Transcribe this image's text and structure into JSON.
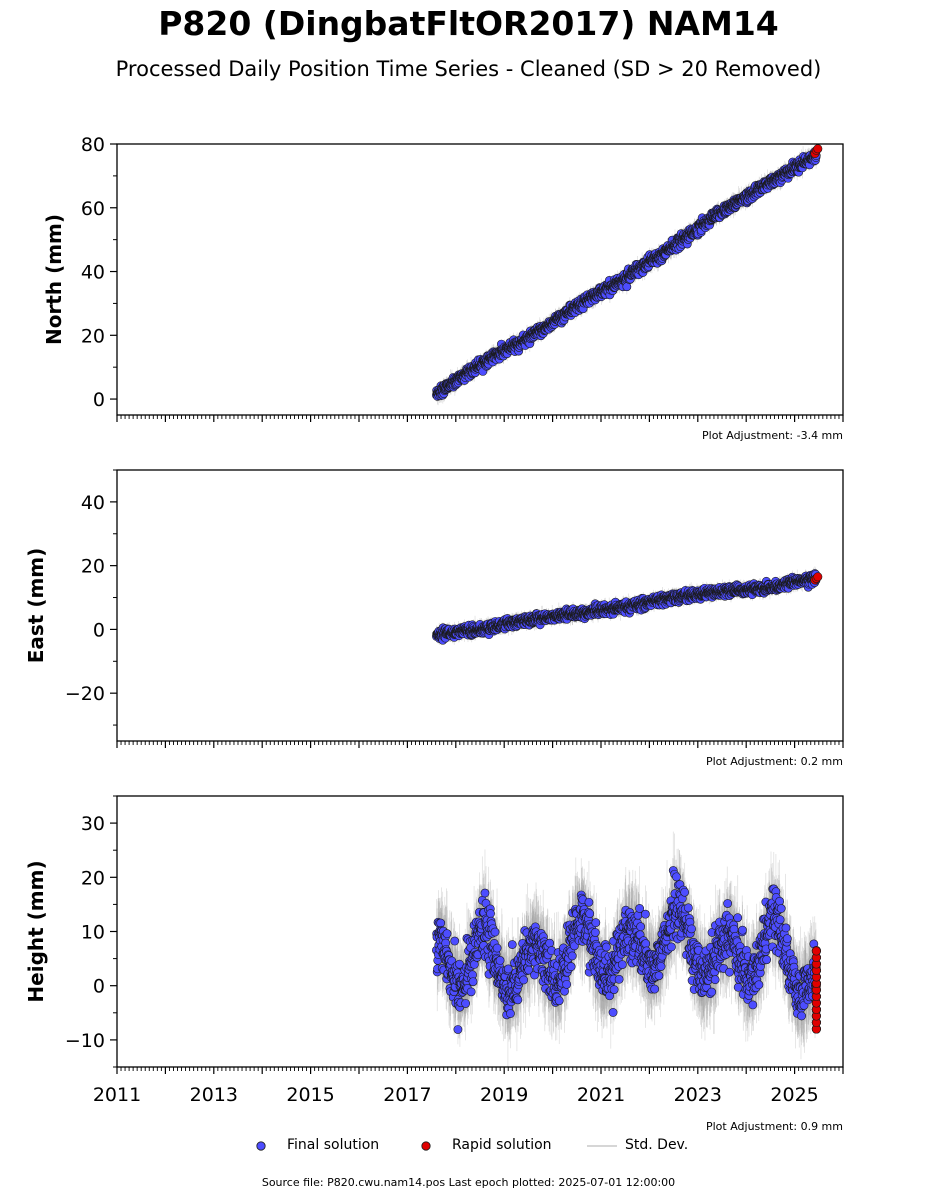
{
  "title": "P820 (DingbatFltOR2017) NAM14",
  "subtitle": "Processed Daily Position Time Series - Cleaned (SD > 20 Removed)",
  "colors": {
    "final": "#4d4dff",
    "rapid": "#e00000",
    "stddev": "#9a9a9a",
    "marker_edge": "#1a1a1a"
  },
  "chart_data": [
    {
      "type": "scatter",
      "ylabel": "North (mm)",
      "ylim": [
        -5,
        80
      ],
      "yticks": [
        0,
        20,
        40,
        60,
        80
      ],
      "ytick_labels": [
        "0",
        "20",
        "40",
        "60",
        "80"
      ],
      "xlim": [
        2011,
        2026
      ],
      "grid": false,
      "adjustment": "Plot Adjustment: -3.4 mm",
      "trend": {
        "start": [
          2017.6,
          1.5
        ],
        "end": [
          2025.45,
          76.5
        ],
        "noise": 1.5
      },
      "series": [
        {
          "name": "Final solution",
          "x": [
            2017.6,
            2018.5,
            2019.5,
            2020.5,
            2021.5,
            2022.5,
            2023.5,
            2024.5,
            2025.4
          ],
          "y": [
            1.5,
            11,
            19,
            29,
            38,
            48,
            59,
            68,
            76
          ]
        },
        {
          "name": "Rapid solution",
          "x": [
            2025.42,
            2025.45,
            2025.48
          ],
          "y": [
            77,
            78,
            78.5
          ]
        }
      ]
    },
    {
      "type": "scatter",
      "ylabel": "East (mm)",
      "ylim": [
        -35,
        50
      ],
      "yticks": [
        -20,
        0,
        20,
        40
      ],
      "ytick_labels": [
        "−20",
        "0",
        "20",
        "40"
      ],
      "xlim": [
        2011,
        2026
      ],
      "grid": false,
      "adjustment": "Plot Adjustment: 0.2 mm",
      "trend": {
        "start": [
          2017.6,
          -1.5
        ],
        "end": [
          2025.45,
          16
        ],
        "noise": 1.3
      },
      "series": [
        {
          "name": "Final solution",
          "x": [
            2017.6,
            2018.5,
            2019.5,
            2020.5,
            2021.5,
            2022.5,
            2023.5,
            2024.5,
            2025.4
          ],
          "y": [
            -1.5,
            0,
            3,
            5,
            7,
            10,
            12,
            13,
            16
          ]
        },
        {
          "name": "Rapid solution",
          "x": [
            2025.42,
            2025.45,
            2025.48
          ],
          "y": [
            15.5,
            16,
            16.5
          ]
        }
      ]
    },
    {
      "type": "scatter",
      "ylabel": "Height (mm)",
      "ylim": [
        -15,
        35
      ],
      "yticks": [
        -10,
        0,
        10,
        20,
        30
      ],
      "ytick_labels": [
        "−10",
        "0",
        "10",
        "20",
        "30"
      ],
      "xlim": [
        2011,
        2026
      ],
      "xticks": [
        2011,
        2013,
        2015,
        2017,
        2019,
        2021,
        2023,
        2025
      ],
      "xtick_labels": [
        "2011",
        "2013",
        "2015",
        "2017",
        "2019",
        "2021",
        "2023",
        "2025"
      ],
      "grid": false,
      "adjustment": "Plot Adjustment: 0.9 mm",
      "trend": {
        "start": [
          2017.6,
          4
        ],
        "end": [
          2025.45,
          2
        ],
        "noise": 4.5,
        "seasonal_amplitude": 5
      },
      "series": [
        {
          "name": "Final solution",
          "x": [
            2017.6,
            2018.5,
            2019.5,
            2020.5,
            2021.5,
            2022.5,
            2023.5,
            2024.5,
            2025.4
          ],
          "y": [
            4,
            6,
            2,
            8,
            5,
            10,
            4,
            8,
            1
          ]
        },
        {
          "name": "Rapid solution",
          "x": [
            2025.45,
            2025.45,
            2025.45,
            2025.45,
            2025.45
          ],
          "y": [
            6.5,
            3,
            0,
            -4.5,
            -8
          ]
        }
      ]
    }
  ],
  "legend": {
    "final_label": "Final solution",
    "rapid_label": "Rapid solution",
    "stddev_label": "Std. Dev."
  },
  "footer": "Source file: P820.cwu.nam14.pos  Last epoch plotted: 2025-07-01 12:00:00"
}
